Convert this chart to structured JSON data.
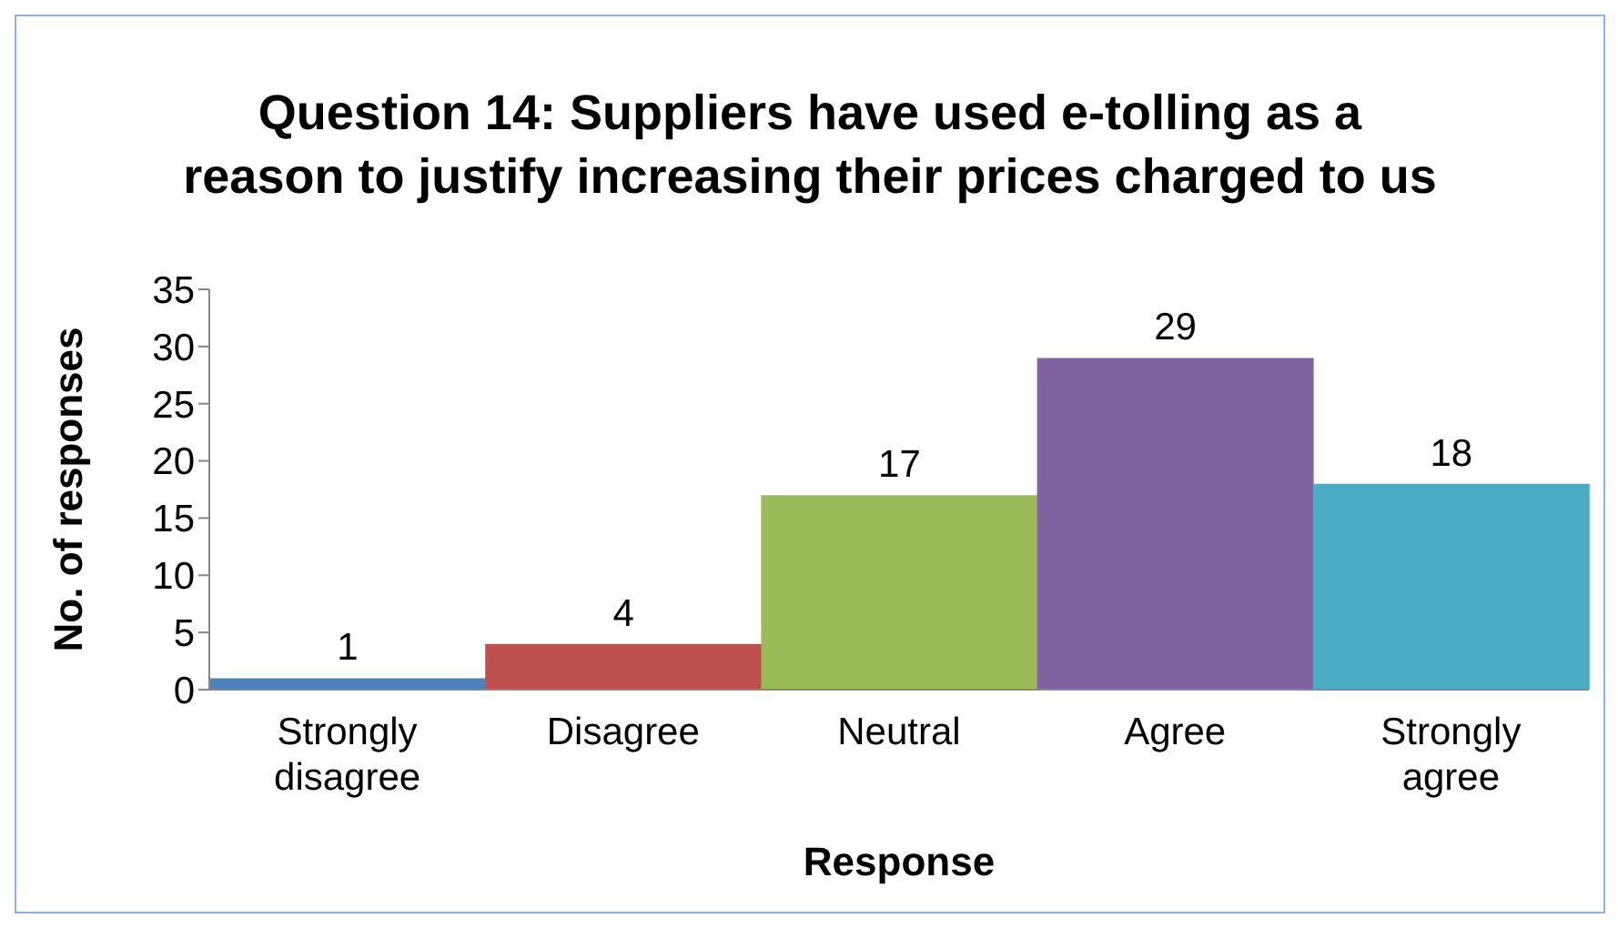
{
  "chart_data": {
    "type": "bar",
    "title": "Question 14: Suppliers have used e-tolling as a reason to justify increasing their prices charged to us",
    "xlabel": "Response",
    "ylabel": "No. of responses",
    "categories": [
      "Strongly disagree",
      "Disagree",
      "Neutral",
      "Agree",
      "Strongly agree"
    ],
    "values": [
      1,
      4,
      17,
      29,
      18
    ],
    "colors": [
      "#4f81bd",
      "#c0504d",
      "#9bbb59",
      "#8064a2",
      "#4bacc6"
    ],
    "ylim": [
      0,
      35
    ],
    "yticks": [
      0,
      5,
      10,
      15,
      20,
      25,
      30,
      35
    ],
    "grid": false,
    "legend": false,
    "data_labels": true
  }
}
